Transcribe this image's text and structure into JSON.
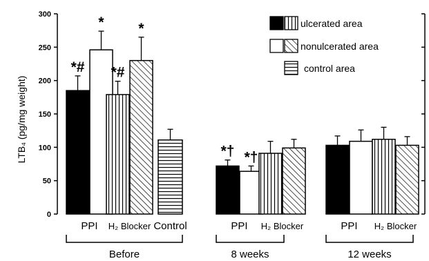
{
  "chart_data": {
    "type": "bar",
    "ylabel": "LTB₄ (pg/mg weight)",
    "ylim": [
      0,
      300
    ],
    "yticks": [
      "0",
      "50",
      "100",
      "150",
      "200",
      "250",
      "300"
    ],
    "legend": {
      "placement": "top-right",
      "entries": [
        {
          "key": "ulcerated",
          "label": "ulcerated area"
        },
        {
          "key": "nonulcerated",
          "label": "nonulcerated area"
        },
        {
          "key": "control",
          "label": "control area"
        }
      ]
    },
    "groups": [
      {
        "label": "Before",
        "categories": [
          {
            "label": "PPI",
            "bars": [
              {
                "area": "ulcerated",
                "treatment": "PPI",
                "value": 185,
                "error": 22,
                "sig": "*#"
              },
              {
                "area": "nonulcerated",
                "treatment": "PPI",
                "value": 246,
                "error": 28,
                "sig": "*"
              }
            ]
          },
          {
            "label": "H₂ Blocker",
            "bars": [
              {
                "area": "ulcerated",
                "treatment": "H2 Blocker",
                "value": 179,
                "error": 20,
                "sig": "*#"
              },
              {
                "area": "nonulcerated",
                "treatment": "H2 Blocker",
                "value": 230,
                "error": 35,
                "sig": "*"
              }
            ]
          },
          {
            "label": "Control",
            "bars": [
              {
                "area": "control",
                "treatment": "Control",
                "value": 111,
                "error": 16,
                "sig": ""
              }
            ]
          }
        ]
      },
      {
        "label": "8 weeks",
        "categories": [
          {
            "label": "PPI",
            "bars": [
              {
                "area": "ulcerated",
                "treatment": "PPI",
                "value": 72,
                "error": 9,
                "sig": "*†"
              },
              {
                "area": "nonulcerated",
                "treatment": "PPI",
                "value": 64,
                "error": 8,
                "sig": "*†"
              }
            ]
          },
          {
            "label": "H₂ Blocker",
            "bars": [
              {
                "area": "ulcerated",
                "treatment": "H2 Blocker",
                "value": 91,
                "error": 18,
                "sig": ""
              },
              {
                "area": "nonulcerated",
                "treatment": "H2 Blocker",
                "value": 99,
                "error": 13,
                "sig": ""
              }
            ]
          }
        ]
      },
      {
        "label": "12 weeks",
        "categories": [
          {
            "label": "PPI",
            "bars": [
              {
                "area": "ulcerated",
                "treatment": "PPI",
                "value": 103,
                "error": 14,
                "sig": ""
              },
              {
                "area": "nonulcerated",
                "treatment": "PPI",
                "value": 109,
                "error": 17,
                "sig": ""
              }
            ]
          },
          {
            "label": "H₂ Blocker",
            "bars": [
              {
                "area": "ulcerated",
                "treatment": "H2 Blocker",
                "value": 112,
                "error": 18,
                "sig": ""
              },
              {
                "area": "nonulcerated",
                "treatment": "H2 Blocker",
                "value": 103,
                "error": 13,
                "sig": ""
              }
            ]
          }
        ]
      }
    ]
  }
}
